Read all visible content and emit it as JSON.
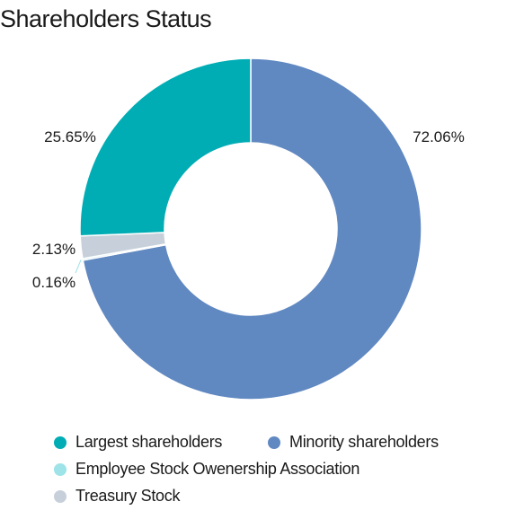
{
  "title": "Shareholders Status",
  "chart_data": {
    "type": "donut",
    "title": "Shareholders Status",
    "slices": [
      {
        "name": "Minority shareholders",
        "value": 72.06,
        "label": "72.06%",
        "color": "#6088c1"
      },
      {
        "name": "Employee Stock Owenership Association",
        "value": 0.16,
        "label": "0.16%",
        "color": "#9de3e8"
      },
      {
        "name": "Treasury Stock",
        "value": 2.13,
        "label": "2.13%",
        "color": "#c7d0da"
      },
      {
        "name": "Largest shareholders",
        "value": 25.65,
        "label": "25.65%",
        "color": "#00adb4"
      }
    ],
    "legend": [
      {
        "name": "Largest shareholders",
        "color": "#00adb4"
      },
      {
        "name": "Minority shareholders",
        "color": "#6088c1"
      },
      {
        "name": "Employee Stock Owenership Association",
        "color": "#9de3e8"
      },
      {
        "name": "Treasury Stock",
        "color": "#c7d0da"
      }
    ],
    "legend_position": "bottom",
    "start": "top, clockwise"
  }
}
